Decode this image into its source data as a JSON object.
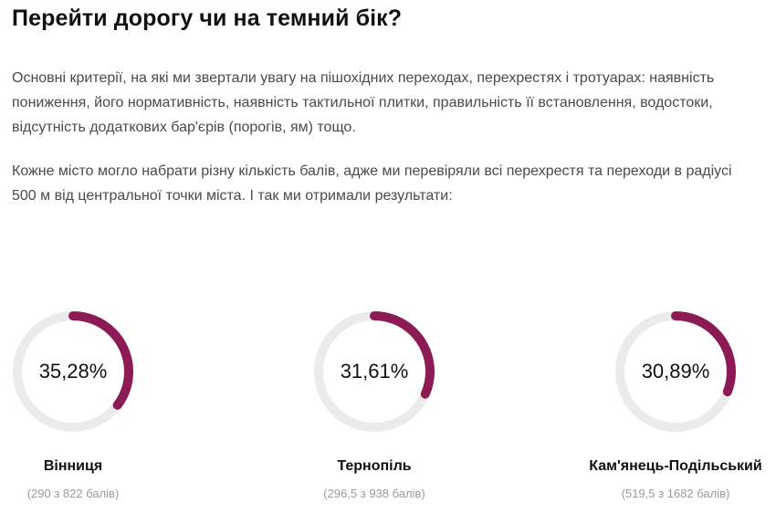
{
  "article": {
    "title": "Перейти дорогу чи на темний бік?",
    "paragraph_1": "Основні критерії, на які ми звертали увагу на пішохідних переходах, перехрестях і тротуарах: наявність пониження, його нормативність, наявність тактильної плитки, правильність її встановлення, водостоки, відсутність додаткових бар'єрів (порогів, ям) тощо.",
    "paragraph_2": "Кожне місто могло набрати різну кількість балів, адже ми перевіряли всі перехрестя та переходи в радіусі 500 м від центральної точки міста. І так ми отримали результати:"
  },
  "results": [
    {
      "percent_label": "35,28%",
      "fraction": 0.3528,
      "city": "Вінниця",
      "score": "(290 з 822 балів)"
    },
    {
      "percent_label": "31,61%",
      "fraction": 0.3161,
      "city": "Тернопіль",
      "score": "(296,5 з 938 балів)"
    },
    {
      "percent_label": "30,89%",
      "fraction": 0.3089,
      "city": "Кам'янець-Подільський",
      "score": "(519,5 з 1682 балів)"
    }
  ],
  "colors": {
    "ring_progress": "#8b1a55",
    "ring_track": "#ebebeb"
  }
}
